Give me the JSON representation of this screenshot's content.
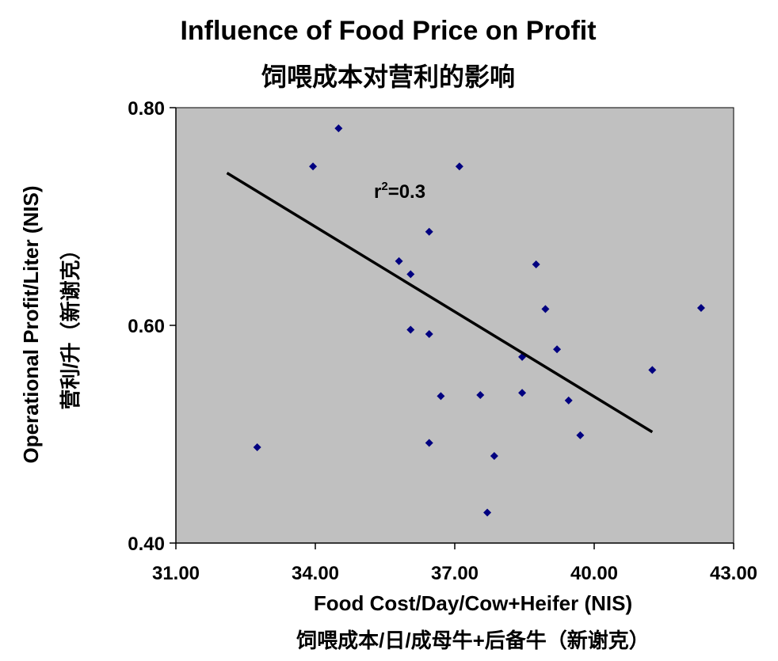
{
  "chart_data": {
    "type": "scatter",
    "title": "Influence of Food Price on Profit",
    "subtitle": "饲喂成本对营利的影响",
    "xlabel": "Food Cost/Day/Cow+Heifer (NIS)",
    "xlabel2": "饲喂成本/日/成母牛+后备牛（新谢克）",
    "ylabel": "Operational Profit/Liter (NIS)",
    "ylabel2": "营利/升（新谢克）",
    "xlim": [
      31,
      43
    ],
    "ylim": [
      0.4,
      0.8
    ],
    "x_ticks": [
      "31.00",
      "34.00",
      "37.00",
      "40.00",
      "43.00"
    ],
    "y_ticks": [
      "0.40",
      "0.60",
      "0.80"
    ],
    "grid": false,
    "background": "#c0c0c0",
    "point_color": "#000080",
    "points": [
      {
        "x": 32.75,
        "y": 0.488
      },
      {
        "x": 33.95,
        "y": 0.746
      },
      {
        "x": 34.5,
        "y": 0.781
      },
      {
        "x": 35.8,
        "y": 0.659
      },
      {
        "x": 36.05,
        "y": 0.596
      },
      {
        "x": 36.05,
        "y": 0.647
      },
      {
        "x": 36.45,
        "y": 0.686
      },
      {
        "x": 36.45,
        "y": 0.592
      },
      {
        "x": 36.45,
        "y": 0.492
      },
      {
        "x": 36.7,
        "y": 0.535
      },
      {
        "x": 37.1,
        "y": 0.746
      },
      {
        "x": 37.55,
        "y": 0.536
      },
      {
        "x": 37.7,
        "y": 0.428
      },
      {
        "x": 37.85,
        "y": 0.48
      },
      {
        "x": 38.45,
        "y": 0.571
      },
      {
        "x": 38.45,
        "y": 0.538
      },
      {
        "x": 38.75,
        "y": 0.656
      },
      {
        "x": 38.95,
        "y": 0.615
      },
      {
        "x": 39.2,
        "y": 0.578
      },
      {
        "x": 39.45,
        "y": 0.531
      },
      {
        "x": 39.7,
        "y": 0.499
      },
      {
        "x": 41.25,
        "y": 0.559
      },
      {
        "x": 42.3,
        "y": 0.616
      }
    ],
    "trendline": {
      "x": [
        32.1,
        41.25
      ],
      "y": [
        0.74,
        0.502
      ]
    },
    "annotation": {
      "r_label": "r",
      "superscript": "2",
      "value_text": "=0.3"
    }
  }
}
